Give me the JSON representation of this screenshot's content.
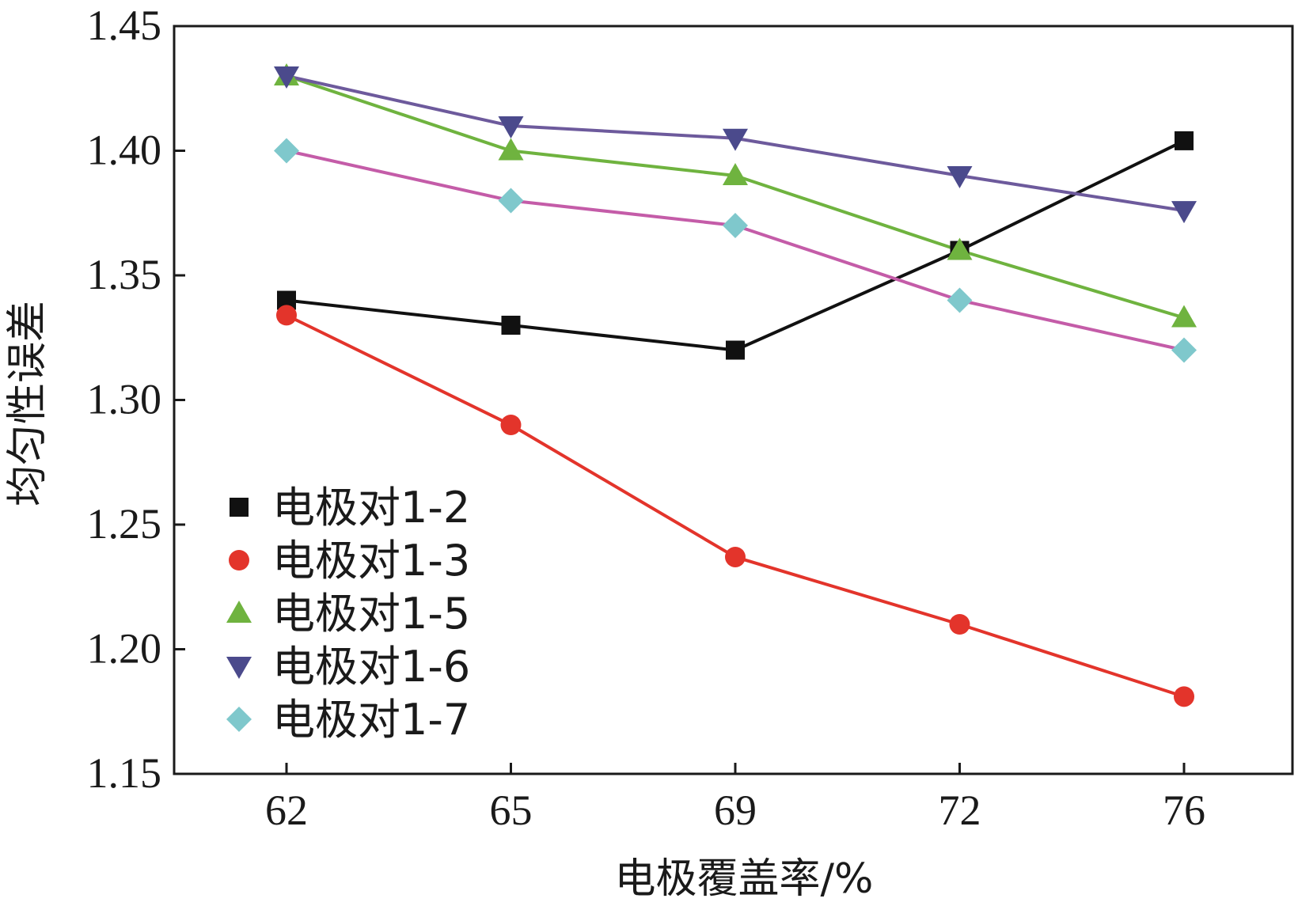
{
  "chart_data": {
    "type": "line",
    "title": "",
    "xlabel": "电极覆盖率/%",
    "ylabel": "均匀性误差",
    "categories": [
      "62",
      "65",
      "69",
      "72",
      "76"
    ],
    "ylim": [
      1.15,
      1.45
    ],
    "yticks": [
      "1.15",
      "1.20",
      "1.25",
      "1.30",
      "1.35",
      "1.40",
      "1.45"
    ],
    "grid": false,
    "legend_position": "bottom-left",
    "series": [
      {
        "name": "电极对1-2",
        "marker": "square",
        "line_color": "#111111",
        "marker_color": "#111111",
        "values": [
          1.34,
          1.33,
          1.32,
          1.36,
          1.404
        ]
      },
      {
        "name": "电极对1-3",
        "marker": "circle",
        "line_color": "#e3342b",
        "marker_color": "#e3342b",
        "values": [
          1.334,
          1.29,
          1.237,
          1.21,
          1.181
        ]
      },
      {
        "name": "电极对1-5",
        "marker": "triangle-up",
        "line_color": "#6fb33f",
        "marker_color": "#6fb33f",
        "values": [
          1.43,
          1.4,
          1.39,
          1.36,
          1.333
        ]
      },
      {
        "name": "电极对1-6",
        "marker": "triangle-down",
        "line_color": "#6d5a9c",
        "marker_color": "#4b4a8c",
        "values": [
          1.43,
          1.41,
          1.405,
          1.39,
          1.376
        ]
      },
      {
        "name": "电极对1-7",
        "marker": "diamond",
        "line_color": "#c45ca8",
        "marker_color": "#7fc8cc",
        "values": [
          1.4,
          1.38,
          1.37,
          1.34,
          1.32
        ]
      }
    ]
  }
}
